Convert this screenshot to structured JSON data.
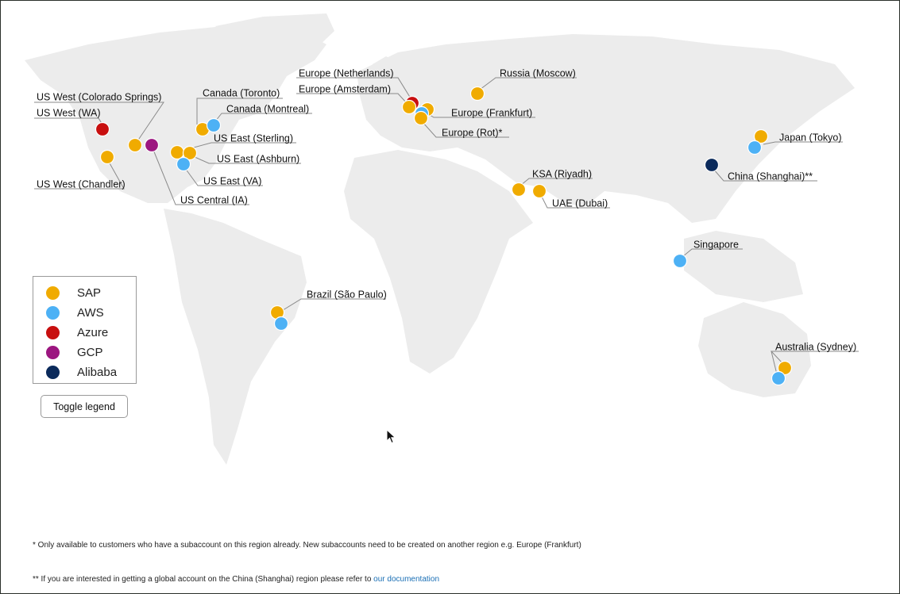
{
  "colors": {
    "SAP": "#f0ab00",
    "AWS": "#4db1f5",
    "Azure": "#c80f0f",
    "GCP": "#9c1680",
    "Alibaba": "#0b2a5b",
    "land": "#ececec"
  },
  "legend": {
    "items": [
      {
        "provider": "SAP",
        "label": "SAP"
      },
      {
        "provider": "AWS",
        "label": "AWS"
      },
      {
        "provider": "Azure",
        "label": "Azure"
      },
      {
        "provider": "GCP",
        "label": "GCP"
      },
      {
        "provider": "Alibaba",
        "label": "Alibaba"
      }
    ],
    "toggle_label": "Toggle legend"
  },
  "regions": [
    {
      "id": "us-west-colorado",
      "label": "US West (Colorado Springs)",
      "providers": [
        "SAP"
      ]
    },
    {
      "id": "us-west-wa",
      "label": "US West (WA)",
      "providers": [
        "Azure"
      ]
    },
    {
      "id": "us-west-chandler",
      "label": "US West (Chandler)",
      "providers": [
        "SAP"
      ]
    },
    {
      "id": "us-central-ia",
      "label": "US Central (IA)",
      "providers": [
        "GCP"
      ]
    },
    {
      "id": "canada-toronto",
      "label": "Canada (Toronto)",
      "providers": [
        "SAP"
      ]
    },
    {
      "id": "canada-montreal",
      "label": "Canada (Montreal)",
      "providers": [
        "AWS"
      ]
    },
    {
      "id": "us-east-sterling",
      "label": "US East (Sterling)",
      "providers": [
        "SAP"
      ]
    },
    {
      "id": "us-east-ashburn",
      "label": "US East (Ashburn)",
      "providers": [
        "SAP"
      ]
    },
    {
      "id": "us-east-va",
      "label": "US East (VA)",
      "providers": [
        "AWS"
      ]
    },
    {
      "id": "europe-netherlands",
      "label": "Europe (Netherlands)",
      "providers": [
        "Azure"
      ]
    },
    {
      "id": "europe-amsterdam",
      "label": "Europe (Amsterdam)",
      "providers": [
        "SAP"
      ]
    },
    {
      "id": "europe-frankfurt",
      "label": "Europe (Frankfurt)",
      "providers": [
        "SAP",
        "AWS"
      ]
    },
    {
      "id": "europe-rot",
      "label": "Europe (Rot)*",
      "providers": [
        "SAP"
      ]
    },
    {
      "id": "russia-moscow",
      "label": "Russia (Moscow)",
      "providers": [
        "SAP"
      ]
    },
    {
      "id": "ksa-riyadh",
      "label": "KSA (Riyadh)",
      "providers": [
        "SAP"
      ]
    },
    {
      "id": "uae-dubai",
      "label": "UAE (Dubai)",
      "providers": [
        "SAP"
      ]
    },
    {
      "id": "japan-tokyo",
      "label": "Japan (Tokyo)",
      "providers": [
        "SAP",
        "AWS"
      ]
    },
    {
      "id": "china-shanghai",
      "label": "China (Shanghai)**",
      "providers": [
        "Alibaba"
      ]
    },
    {
      "id": "singapore",
      "label": "Singapore",
      "providers": [
        "AWS"
      ]
    },
    {
      "id": "brazil-sao-paulo",
      "label": "Brazil (São Paulo)",
      "providers": [
        "SAP",
        "AWS"
      ]
    },
    {
      "id": "australia-sydney",
      "label": "Australia (Sydney)",
      "providers": [
        "SAP",
        "AWS"
      ]
    }
  ],
  "footnotes": {
    "note1": "* Only available to customers who have a subaccount on this region already. New subaccounts need to be created on another region e.g. Europe (Frankfurt)",
    "note2_text": "** If you are interested in getting a global account on the China (Shanghai) region please refer to ",
    "note2_link": "our documentation"
  }
}
